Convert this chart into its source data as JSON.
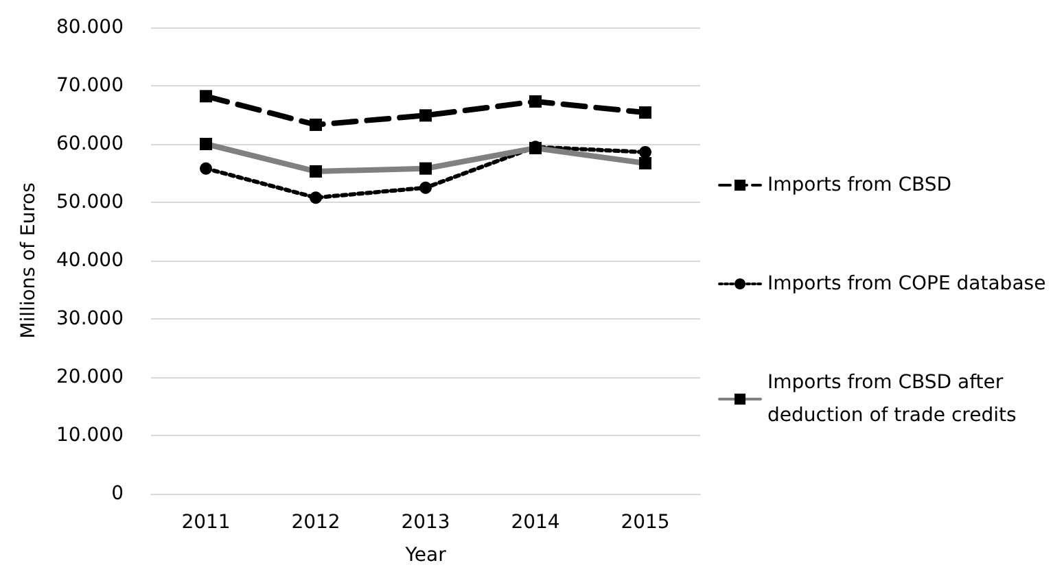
{
  "chart_data": {
    "type": "line",
    "xlabel": "Year",
    "ylabel": "Millions of Euros",
    "categories": [
      "2011",
      "2012",
      "2013",
      "2014",
      "2015"
    ],
    "series": [
      {
        "name": "Imports from CBSD",
        "color": "#000000",
        "line_style": "dashed",
        "marker": "square",
        "values": [
          68200,
          63300,
          64900,
          67300,
          65400
        ]
      },
      {
        "name": "Imports from COPE database",
        "color": "#000000",
        "line_style": "dotted",
        "marker": "circle",
        "values": [
          55800,
          50800,
          52500,
          59500,
          58600
        ]
      },
      {
        "name": "Imports from CBSD after deduction of trade credits",
        "color": "#808080",
        "line_style": "solid",
        "marker": "square",
        "values": [
          60000,
          55300,
          55800,
          59300,
          56700
        ]
      }
    ],
    "ylim": [
      0,
      80000
    ],
    "yticks": [
      {
        "value": 0,
        "label": "0"
      },
      {
        "value": 10000,
        "label": "10.000"
      },
      {
        "value": 20000,
        "label": "20.000"
      },
      {
        "value": 30000,
        "label": "30.000"
      },
      {
        "value": 40000,
        "label": "40.000"
      },
      {
        "value": 50000,
        "label": "50.000"
      },
      {
        "value": 60000,
        "label": "60.000"
      },
      {
        "value": 70000,
        "label": "70.000"
      },
      {
        "value": 80000,
        "label": "80.000"
      }
    ],
    "grid": "y",
    "legend": "right"
  }
}
